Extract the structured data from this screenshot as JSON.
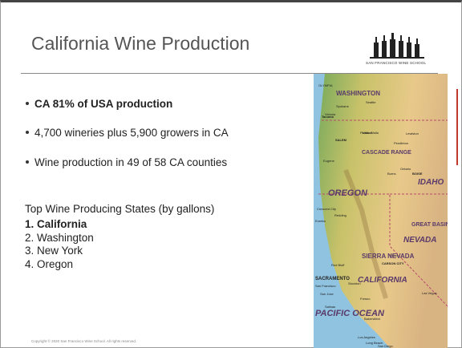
{
  "slide": {
    "title": "California Wine Production",
    "logo": "SAN FRANCISCO WINE SCHOOL",
    "bullets": [
      "CA 81% of USA production",
      "4,700 wineries plus 5,900 growers in CA",
      "Wine production in 49 of 58 CA counties"
    ],
    "list_heading": "Top Wine Producing States (by gallons)",
    "list": [
      "1. California",
      "2. Washington",
      "3. New York",
      "4. Oregon"
    ],
    "copyright": "Copyright © 2020 San Francisco Wine School. All rights reserved.",
    "map_labels": [
      "WASHINGTON",
      "Seattle",
      "Spokane",
      "Tacoma",
      "OLYMPIA",
      "Victoria",
      "Portland",
      "SALEM",
      "Eugene",
      "Pendleton",
      "Walla Walla",
      "Lewiston",
      "OREGON",
      "IDAHO",
      "BOISE",
      "Burns",
      "Ontario",
      "CASCADE RANGE",
      "Crescent City",
      "Eureka",
      "Redding",
      "Reno",
      "CARSON CITY",
      "GREAT BASIN",
      "NEVADA",
      "Red Bluff",
      "SACRAMENTO",
      "San Francisco",
      "Stockton",
      "San Jose",
      "Fresno",
      "Salinas",
      "SIERRA NEVADA",
      "CALIFORNIA",
      "Bakersfield",
      "Las Vegas",
      "PACIFIC OCEAN",
      "Los Angeles",
      "Long Beach",
      "San Diego"
    ]
  }
}
